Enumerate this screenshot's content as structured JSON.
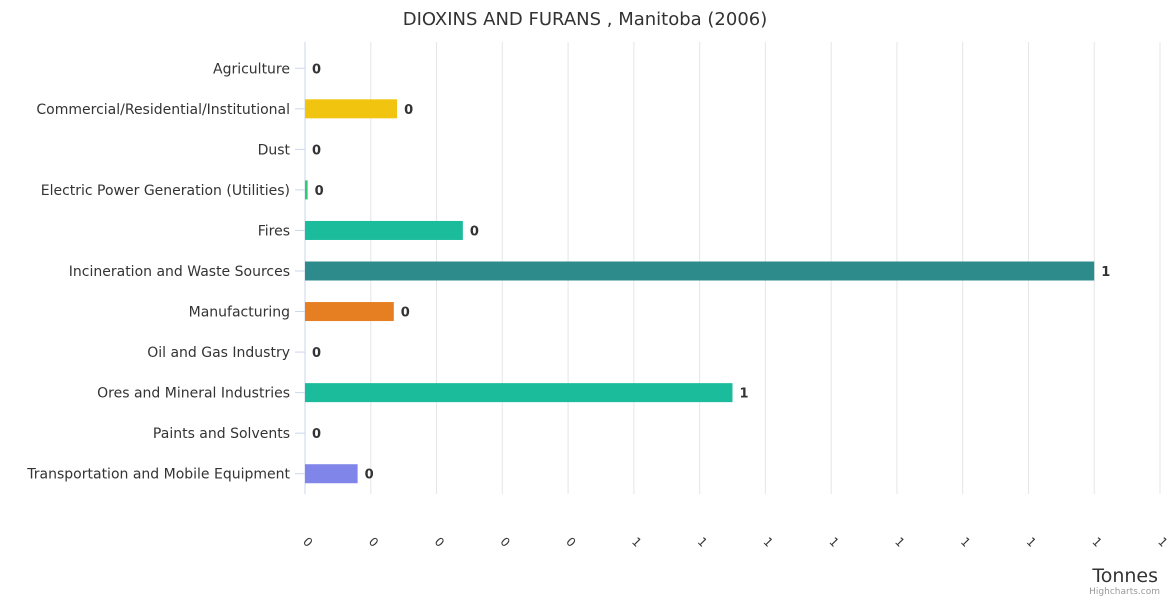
{
  "chart_data": {
    "type": "bar",
    "orientation": "horizontal",
    "title": "DIOXINS AND FURANS , Manitoba (2006)",
    "xlabel": "",
    "ylabel": "Tonnes",
    "credits": "Highcharts.com",
    "categories": [
      "Agriculture",
      "Commercial/Residential/Institutional",
      "Dust",
      "Electric Power Generation (Utilities)",
      "Fires",
      "Incineration and Waste Sources",
      "Manufacturing",
      "Oil and Gas Industry",
      "Ores and Mineral Industries",
      "Paints and Solvents",
      "Transportation and Mobile Equipment"
    ],
    "values": [
      0,
      0.14,
      0,
      0.004,
      0.24,
      1.2,
      0.135,
      0,
      0.65,
      0,
      0.08
    ],
    "data_labels": [
      "0",
      "0",
      "0",
      "0",
      "0",
      "1",
      "0",
      "0",
      "1",
      "0",
      "0"
    ],
    "colors": [
      "#4572a7",
      "#f1c40f",
      "#95a5a6",
      "#2ecc71",
      "#1abc9c",
      "#2e8b8b",
      "#e67e22",
      "#34495e",
      "#1abc9c",
      "#9b59b6",
      "#8085e9"
    ],
    "tick_values": [
      0,
      0.1,
      0.2,
      0.3,
      0.4,
      0.5,
      0.6,
      0.7,
      0.8,
      0.9,
      1.0,
      1.1,
      1.2,
      1.3
    ],
    "tick_labels": [
      "0",
      "0",
      "0",
      "0",
      "0",
      "1",
      "1",
      "1",
      "1",
      "1",
      "1",
      "1",
      "1",
      "1"
    ],
    "xlim": [
      0,
      1.3
    ],
    "grid": true,
    "legend": "none"
  }
}
